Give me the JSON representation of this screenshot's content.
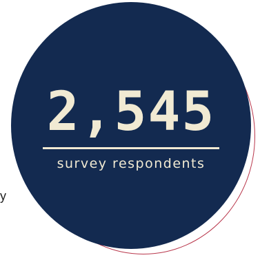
{
  "badge": {
    "number": "2,545",
    "caption": "survey respondents"
  },
  "side_text": "y",
  "colors": {
    "circle": "#132a50",
    "text": "#f1ead3",
    "accent_ring": "#b8354a",
    "background": "#ffffff"
  }
}
